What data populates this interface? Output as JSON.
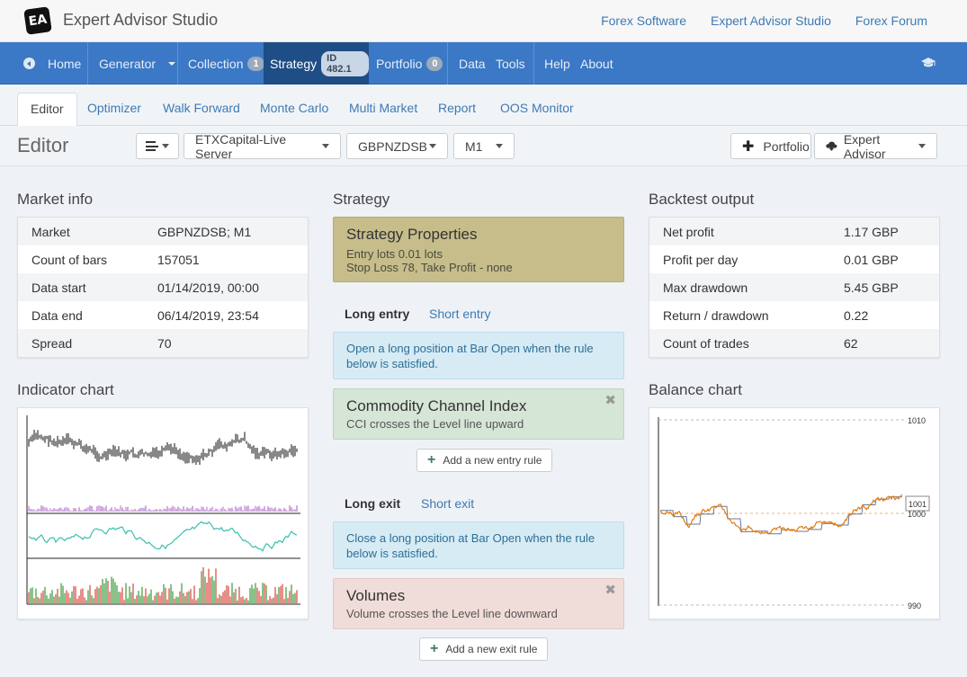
{
  "app": {
    "logo_text": "EA",
    "title": "Expert Advisor Studio",
    "top_links": [
      "Forex Software",
      "Expert Advisor Studio",
      "Forex Forum"
    ]
  },
  "nav": {
    "home": "Home",
    "generator": "Generator",
    "collection": "Collection",
    "collection_count": "1",
    "strategy": "Strategy",
    "strategy_id": "ID 482.1",
    "portfolio": "Portfolio",
    "portfolio_count": "0",
    "data": "Data",
    "tools": "Tools",
    "help": "Help",
    "about": "About",
    "academy_icon": "graduation-cap-icon"
  },
  "subtabs": [
    "Editor",
    "Optimizer",
    "Walk Forward",
    "Monte Carlo",
    "Multi Market",
    "Report",
    "OOS Monitor"
  ],
  "toolbar": {
    "title": "Editor",
    "server": "ETXCapital-Live Server",
    "symbol": "GBPNZDSB",
    "period": "M1",
    "portfolio_btn": "Portfolio",
    "ea_btn": "Expert Advisor"
  },
  "market_info": {
    "heading": "Market info",
    "rows": [
      {
        "k": "Market",
        "v": "GBPNZDSB; M1"
      },
      {
        "k": "Count of bars",
        "v": "157051"
      },
      {
        "k": "Data start",
        "v": "01/14/2019, 00:00"
      },
      {
        "k": "Data end",
        "v": "06/14/2019, 23:54"
      },
      {
        "k": "Spread",
        "v": "70"
      }
    ]
  },
  "strategy": {
    "heading": "Strategy",
    "props_title": "Strategy Properties",
    "props_line1": "Entry lots 0.01 lots",
    "props_line2": "Stop Loss 78, Take Profit - none",
    "long_entry_tab": "Long entry",
    "short_entry_tab": "Short entry",
    "entry_info": "Open a long position at Bar Open when the rule below is satisfied.",
    "entry_rule_title": "Commodity Channel Index",
    "entry_rule_text": "CCI crosses the Level line upward",
    "add_entry": "Add a new entry rule",
    "long_exit_tab": "Long exit",
    "short_exit_tab": "Short exit",
    "exit_info": "Close a long position at Bar Open when the rule below is satisfied.",
    "exit_rule_title": "Volumes",
    "exit_rule_text": "Volume crosses the Level line downward",
    "add_exit": "Add a new exit rule"
  },
  "backtest": {
    "heading": "Backtest output",
    "rows": [
      {
        "k": "Net profit",
        "v": "1.17 GBP"
      },
      {
        "k": "Profit per day",
        "v": "0.01 GBP"
      },
      {
        "k": "Max drawdown",
        "v": "5.45 GBP"
      },
      {
        "k": "Return / drawdown",
        "v": "0.22"
      },
      {
        "k": "Count of trades",
        "v": "62"
      }
    ]
  },
  "indicator_chart": {
    "heading": "Indicator chart"
  },
  "balance_chart": {
    "heading": "Balance chart",
    "y_top": "1010",
    "y_mid": "1000",
    "y_bottom": "990",
    "last_value": "1001"
  },
  "colors": {
    "nav_bg": "#3b78c5",
    "nav_active": "#1f4d85",
    "link": "#3d7ab5",
    "props_bg": "#c6bd8b",
    "entry_rule_bg": "#d5e5d6",
    "exit_rule_bg": "#f0ddd9",
    "info_bg": "#d7ebf5",
    "balance_line": "#e07b12"
  }
}
